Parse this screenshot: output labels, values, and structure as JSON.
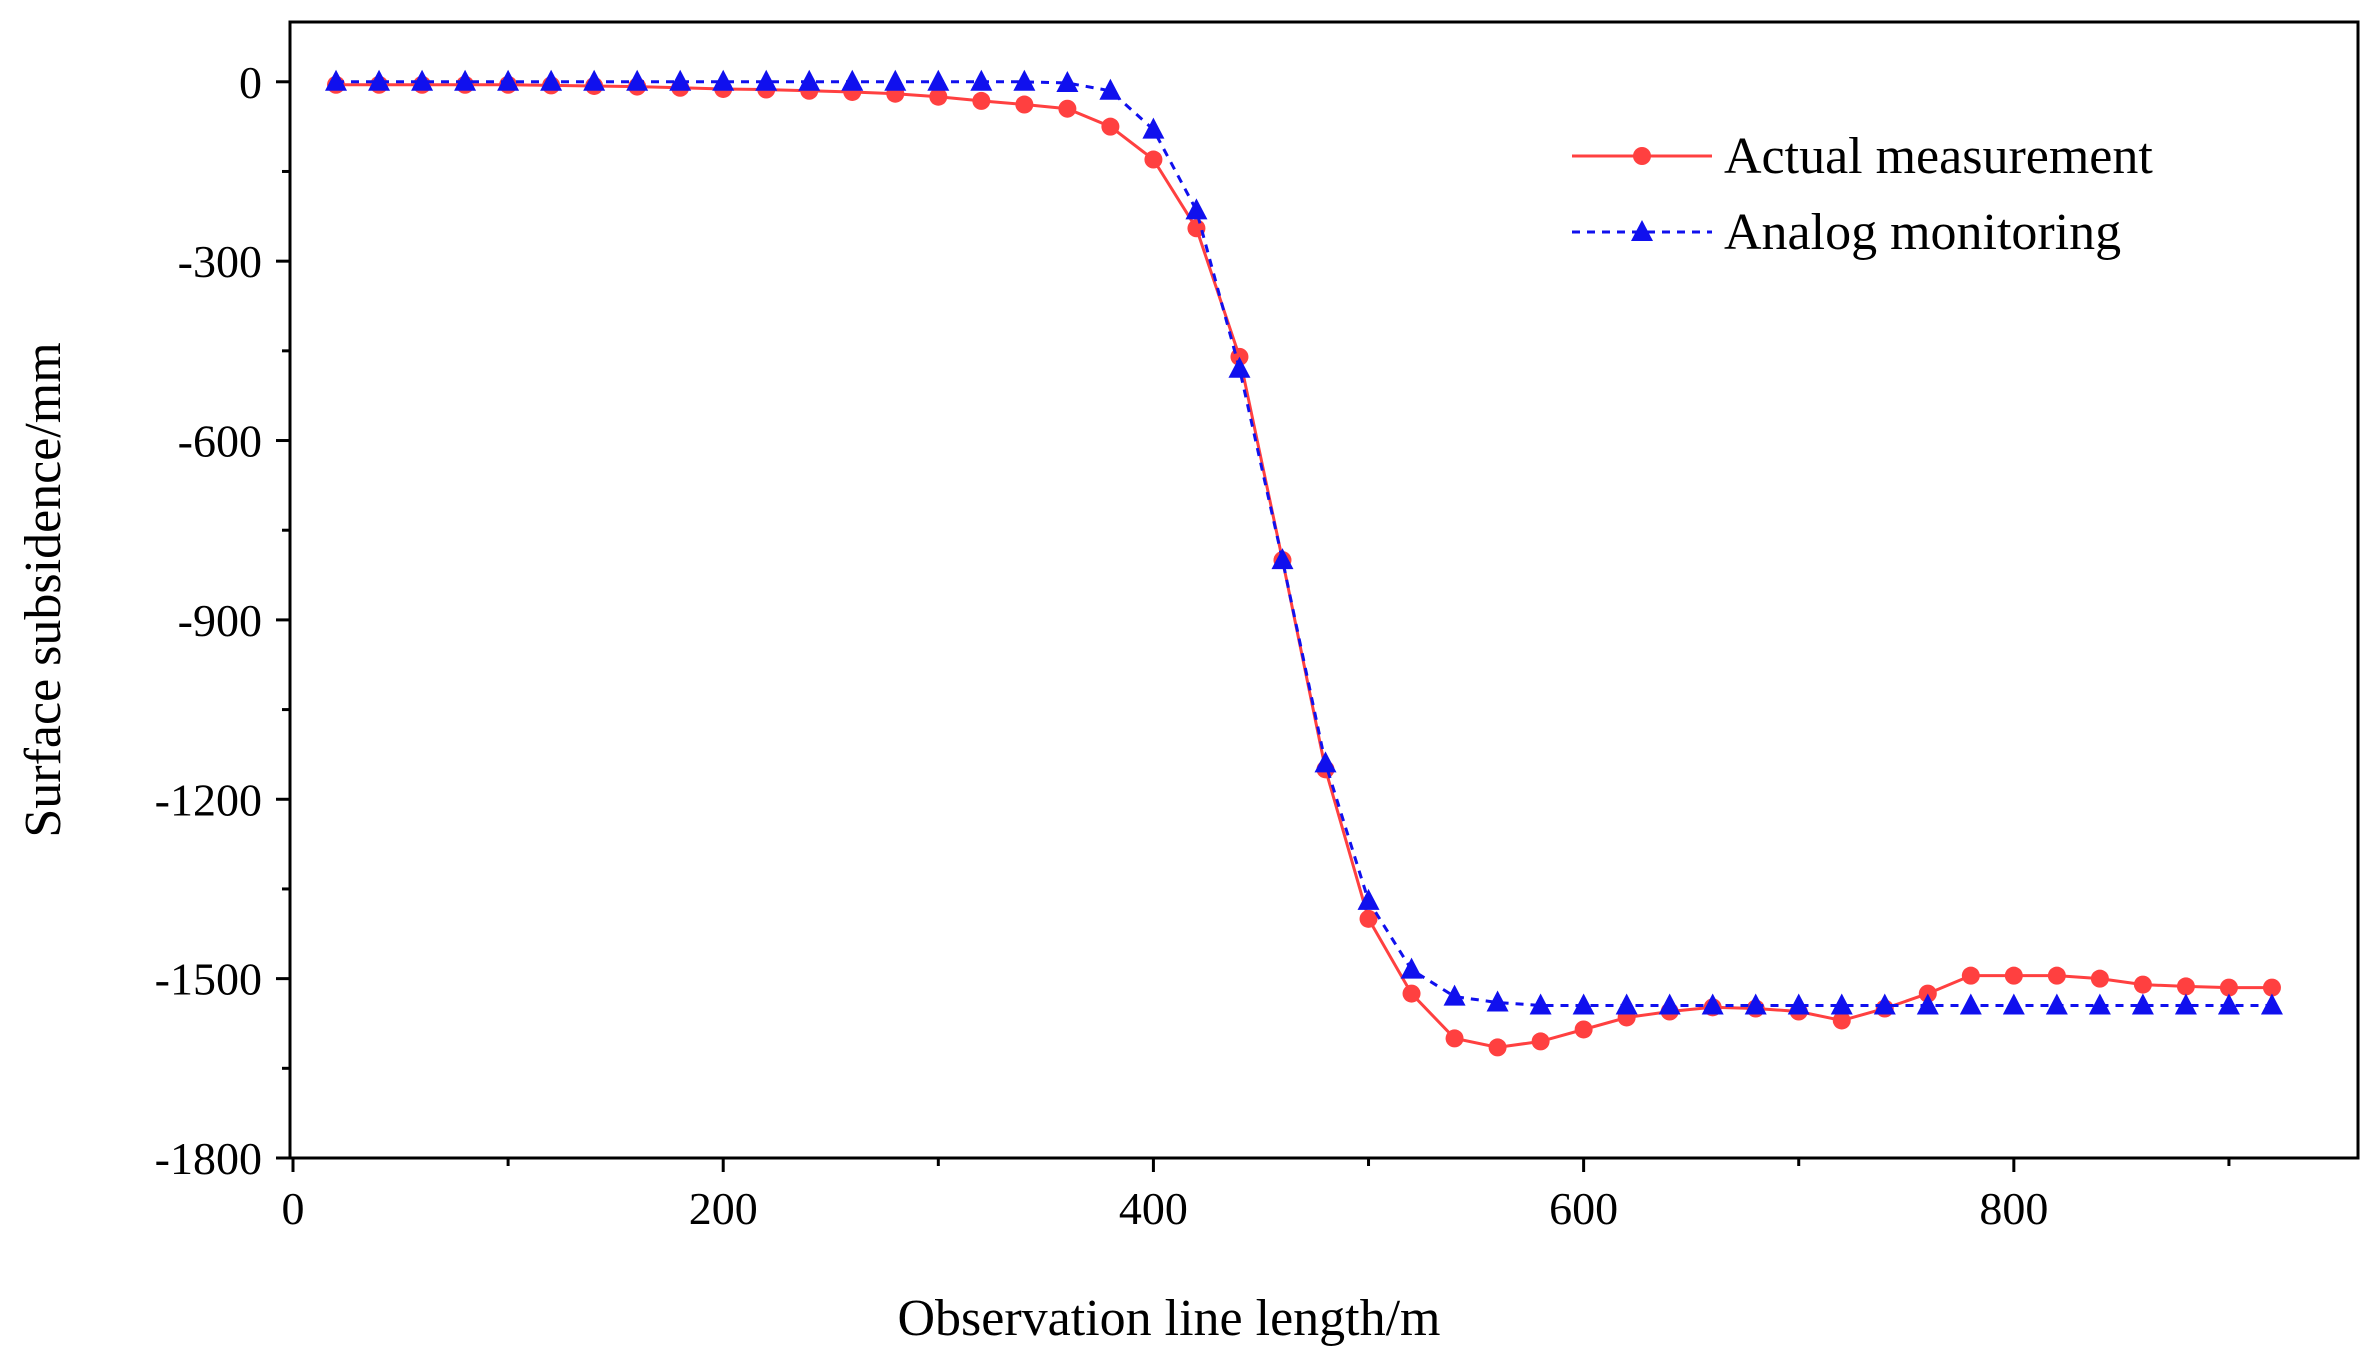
{
  "chart_data": {
    "type": "line",
    "title": "",
    "xlabel": "Observation line length/m",
    "ylabel": "Surface subsidence/mm",
    "xlim": [
      0,
      960
    ],
    "ylim": [
      -1800,
      100
    ],
    "xticks": [
      0,
      200,
      400,
      600,
      800
    ],
    "xtick_labels": [
      "0",
      "200",
      "400",
      "600",
      "800"
    ],
    "xminor": [
      100,
      300,
      500,
      700,
      900
    ],
    "yticks": [
      0,
      -300,
      -600,
      -900,
      -1200,
      -1500,
      -1800
    ],
    "ytick_labels": [
      "0",
      "-300",
      "-600",
      "-900",
      "-1200",
      "-1500",
      "-1800"
    ],
    "yminor": [
      -150,
      -450,
      -750,
      -1050,
      -1350,
      -1650
    ],
    "grid": false,
    "legend_position": "top-right",
    "x": [
      20,
      40,
      60,
      80,
      100,
      120,
      140,
      160,
      180,
      200,
      220,
      240,
      260,
      280,
      300,
      320,
      340,
      360,
      380,
      400,
      420,
      440,
      460,
      480,
      500,
      520,
      540,
      560,
      580,
      600,
      620,
      640,
      660,
      680,
      700,
      720,
      740,
      760,
      780,
      800,
      820,
      840,
      860,
      880,
      900,
      920
    ],
    "series": [
      {
        "name": "Actual measurement",
        "color": "#ff4040",
        "line_style": "solid",
        "marker": "circle",
        "values": [
          -5,
          -5,
          -5,
          -5,
          -5,
          -6,
          -7,
          -8,
          -10,
          -12,
          -13,
          -15,
          -17,
          -20,
          -25,
          -32,
          -38,
          -45,
          -75,
          -130,
          -245,
          -460,
          -800,
          -1150,
          -1400,
          -1525,
          -1600,
          -1615,
          -1605,
          -1585,
          -1565,
          -1555,
          -1548,
          -1550,
          -1555,
          -1570,
          -1550,
          -1525,
          -1495,
          -1495,
          -1495,
          -1500,
          -1510,
          -1513,
          -1515,
          -1515
        ]
      },
      {
        "name": "Analog monitoring",
        "color": "#1010ee",
        "line_style": "dashed",
        "marker": "triangle",
        "values": [
          0,
          0,
          0,
          0,
          0,
          0,
          0,
          0,
          0,
          0,
          0,
          0,
          0,
          0,
          0,
          0,
          0,
          -2,
          -15,
          -80,
          -215,
          -480,
          -800,
          -1140,
          -1370,
          -1485,
          -1530,
          -1540,
          -1545,
          -1545,
          -1545,
          -1545,
          -1545,
          -1545,
          -1545,
          -1545,
          -1545,
          -1545,
          -1545,
          -1545,
          -1545,
          -1545,
          -1545,
          -1545,
          -1545,
          -1545
        ]
      }
    ]
  }
}
